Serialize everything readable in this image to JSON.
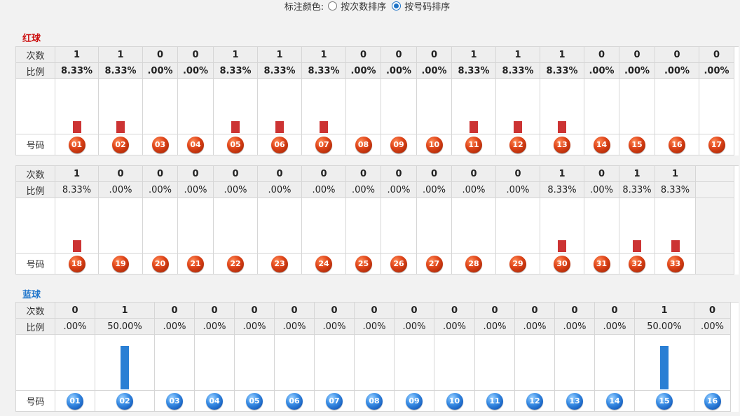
{
  "controls": {
    "color_label": "标注颜色:",
    "options": [
      {
        "label": "按次数排序",
        "checked": false
      },
      {
        "label": "按号码排序",
        "checked": true
      }
    ]
  },
  "red": {
    "title": "红球",
    "row_labels": {
      "count": "次数",
      "ratio": "比例",
      "number": "号码"
    },
    "row1": [
      {
        "num": "01",
        "count": "1",
        "ratio": "8.33%"
      },
      {
        "num": "02",
        "count": "1",
        "ratio": "8.33%"
      },
      {
        "num": "03",
        "count": "0",
        "ratio": ".00%"
      },
      {
        "num": "04",
        "count": "0",
        "ratio": ".00%"
      },
      {
        "num": "05",
        "count": "1",
        "ratio": "8.33%"
      },
      {
        "num": "06",
        "count": "1",
        "ratio": "8.33%"
      },
      {
        "num": "07",
        "count": "1",
        "ratio": "8.33%"
      },
      {
        "num": "08",
        "count": "0",
        "ratio": ".00%"
      },
      {
        "num": "09",
        "count": "0",
        "ratio": ".00%"
      },
      {
        "num": "10",
        "count": "0",
        "ratio": ".00%"
      },
      {
        "num": "11",
        "count": "1",
        "ratio": "8.33%"
      },
      {
        "num": "12",
        "count": "1",
        "ratio": "8.33%"
      },
      {
        "num": "13",
        "count": "1",
        "ratio": "8.33%"
      },
      {
        "num": "14",
        "count": "0",
        "ratio": ".00%"
      },
      {
        "num": "15",
        "count": "0",
        "ratio": ".00%"
      },
      {
        "num": "16",
        "count": "0",
        "ratio": ".00%"
      },
      {
        "num": "17",
        "count": "0",
        "ratio": ".00%"
      }
    ],
    "row2": [
      {
        "num": "18",
        "count": "1",
        "ratio": "8.33%"
      },
      {
        "num": "19",
        "count": "0",
        "ratio": ".00%"
      },
      {
        "num": "20",
        "count": "0",
        "ratio": ".00%"
      },
      {
        "num": "21",
        "count": "0",
        "ratio": ".00%"
      },
      {
        "num": "22",
        "count": "0",
        "ratio": ".00%"
      },
      {
        "num": "23",
        "count": "0",
        "ratio": ".00%"
      },
      {
        "num": "24",
        "count": "0",
        "ratio": ".00%"
      },
      {
        "num": "25",
        "count": "0",
        "ratio": ".00%"
      },
      {
        "num": "26",
        "count": "0",
        "ratio": ".00%"
      },
      {
        "num": "27",
        "count": "0",
        "ratio": ".00%"
      },
      {
        "num": "28",
        "count": "0",
        "ratio": ".00%"
      },
      {
        "num": "29",
        "count": "0",
        "ratio": ".00%"
      },
      {
        "num": "30",
        "count": "1",
        "ratio": "8.33%"
      },
      {
        "num": "31",
        "count": "0",
        "ratio": ".00%"
      },
      {
        "num": "32",
        "count": "1",
        "ratio": "8.33%"
      },
      {
        "num": "33",
        "count": "1",
        "ratio": "8.33%"
      }
    ]
  },
  "blue": {
    "title": "蓝球",
    "row_labels": {
      "count": "次数",
      "ratio": "比例",
      "number": "号码"
    },
    "row": [
      {
        "num": "01",
        "count": "0",
        "ratio": ".00%"
      },
      {
        "num": "02",
        "count": "1",
        "ratio": "50.00%"
      },
      {
        "num": "03",
        "count": "0",
        "ratio": ".00%"
      },
      {
        "num": "04",
        "count": "0",
        "ratio": ".00%"
      },
      {
        "num": "05",
        "count": "0",
        "ratio": ".00%"
      },
      {
        "num": "06",
        "count": "0",
        "ratio": ".00%"
      },
      {
        "num": "07",
        "count": "0",
        "ratio": ".00%"
      },
      {
        "num": "08",
        "count": "0",
        "ratio": ".00%"
      },
      {
        "num": "09",
        "count": "0",
        "ratio": ".00%"
      },
      {
        "num": "10",
        "count": "0",
        "ratio": ".00%"
      },
      {
        "num": "11",
        "count": "0",
        "ratio": ".00%"
      },
      {
        "num": "12",
        "count": "0",
        "ratio": ".00%"
      },
      {
        "num": "13",
        "count": "0",
        "ratio": ".00%"
      },
      {
        "num": "14",
        "count": "0",
        "ratio": ".00%"
      },
      {
        "num": "15",
        "count": "1",
        "ratio": "50.00%"
      },
      {
        "num": "16",
        "count": "0",
        "ratio": ".00%"
      }
    ]
  },
  "colors": {
    "red_bar": "#cc3333",
    "blue_bar": "#2a7fd4",
    "red_title": "#cc1111",
    "blue_title": "#2277cc"
  }
}
